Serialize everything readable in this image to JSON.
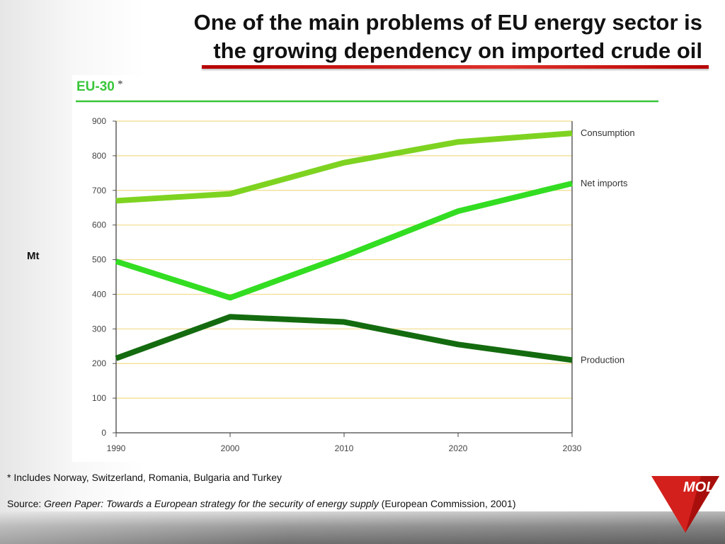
{
  "slide": {
    "title_line1": "One of the main problems of EU energy sector is",
    "title_line2": "the growing dependency on imported crude oil",
    "mt_label": "Mt",
    "footnote": "* Includes Norway, Switzerland, Romania, Bulgaria and Turkey",
    "source_prefix": "Source: ",
    "source_title": "Green Paper: Towards a European strategy for the security of energy supply",
    "source_suffix": " (European Commission, 2001)",
    "logo_text": "MOL",
    "colors": {
      "title_rule": "#c80000",
      "panel_rule": "#39c63a",
      "logo_red": "#d3201c"
    }
  },
  "chart_data": {
    "type": "line",
    "title": "EU-30",
    "title_marker": "*",
    "x": [
      1990,
      2000,
      2010,
      2020,
      2030
    ],
    "xticks": [
      "1990",
      "2000",
      "2010",
      "2020",
      "2030"
    ],
    "ylim": [
      0,
      900
    ],
    "yticks": [
      0,
      100,
      200,
      300,
      400,
      500,
      600,
      700,
      800,
      900
    ],
    "ytick_labels": [
      "0",
      "100",
      "200",
      "300",
      "400",
      "500",
      "600",
      "700",
      "800",
      "900"
    ],
    "grid": true,
    "legend": "labels at right end of each line",
    "series": [
      {
        "name": "Consumption",
        "color": "#7ed321",
        "values": [
          670,
          690,
          780,
          840,
          865
        ]
      },
      {
        "name": "Net imports",
        "color": "#33dd22",
        "values": [
          495,
          390,
          510,
          640,
          720
        ]
      },
      {
        "name": "Production",
        "color": "#146b0f",
        "values": [
          215,
          335,
          320,
          255,
          210
        ]
      }
    ]
  }
}
